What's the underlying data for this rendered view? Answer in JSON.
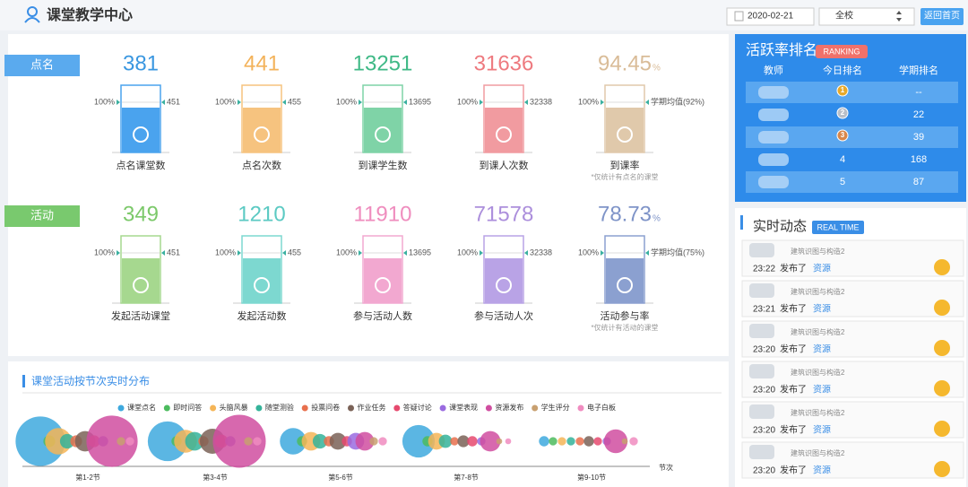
{
  "header": {
    "title": "课堂教学中心",
    "date": "2020-02-21",
    "scope": "全校",
    "home_button": "返回首页"
  },
  "rollcall": {
    "label": "点名",
    "cards": [
      {
        "value": 381,
        "top": "100%",
        "cap": 451,
        "label": "点名课堂数"
      },
      {
        "value": 441,
        "top": "100%",
        "cap": 455,
        "label": "点名次数"
      },
      {
        "value": 13251,
        "top": "100%",
        "cap": 13695,
        "label": "到课学生数"
      },
      {
        "value": 31636,
        "top": "100%",
        "cap": 32338,
        "label": "到课人次数"
      },
      {
        "value": 94.45,
        "unit": "%",
        "top": "100%",
        "cap": "学期均值(92%)",
        "label": "到课率",
        "note": "*仅统计有点名的课堂"
      }
    ]
  },
  "activity": {
    "label": "活动",
    "cards": [
      {
        "value": 349,
        "top": "100%",
        "cap": 451,
        "label": "发起活动课堂"
      },
      {
        "value": 1210,
        "top": "100%",
        "cap": 455,
        "label": "发起活动数"
      },
      {
        "value": 11910,
        "top": "100%",
        "cap": 13695,
        "label": "参与活动人数"
      },
      {
        "value": 71578,
        "top": "100%",
        "cap": 32338,
        "label": "参与活动人次"
      },
      {
        "value": 78.73,
        "unit": "%",
        "top": "100%",
        "cap": "学期均值(75%)",
        "label": "活动参与率",
        "note": "*仅统计有活动的课堂"
      }
    ]
  },
  "ranking": {
    "title": "活跃率排名",
    "badge": "RANKING",
    "columns": [
      "教师",
      "今日排名",
      "学期排名"
    ],
    "rows": [
      {
        "today": 1,
        "semester": "--"
      },
      {
        "today": 2,
        "semester": 22
      },
      {
        "today": 3,
        "semester": 39
      },
      {
        "today": 4,
        "semester": 168
      },
      {
        "today": 5,
        "semester": 87
      }
    ]
  },
  "realtime": {
    "title": "实时动态",
    "badge": "REAL TIME",
    "items": [
      {
        "course": "建筑识图与构造2",
        "time": "23:22",
        "action": "发布了",
        "link": "资源"
      },
      {
        "course": "建筑识图与构造2",
        "time": "23:21",
        "action": "发布了",
        "link": "资源"
      },
      {
        "course": "建筑识图与构造2",
        "time": "23:20",
        "action": "发布了",
        "link": "资源"
      },
      {
        "course": "建筑识图与构造2",
        "time": "23:20",
        "action": "发布了",
        "link": "资源"
      },
      {
        "course": "建筑识图与构造2",
        "time": "23:20",
        "action": "发布了",
        "link": "资源"
      },
      {
        "course": "建筑识图与构造2",
        "time": "23:20",
        "action": "发布了",
        "link": "资源"
      }
    ]
  },
  "chart_data": {
    "type": "bubble",
    "title": "课堂活动按节次实时分布",
    "categories": [
      "第1-2节",
      "第3-4节",
      "第5-6节",
      "第7-8节",
      "第9-10节"
    ],
    "x_label": "节次",
    "series": [
      {
        "name": "课堂点名",
        "color": "#3ea9de",
        "values": [
          70,
          45,
          20,
          30,
          3
        ]
      },
      {
        "name": "即时问答",
        "color": "#4cbb5e",
        "values": [
          4,
          3,
          3,
          3,
          2
        ]
      },
      {
        "name": "头脑风暴",
        "color": "#f5b557",
        "values": [
          20,
          15,
          10,
          8,
          2
        ]
      },
      {
        "name": "随堂测验",
        "color": "#34b39a",
        "values": [
          6,
          10,
          6,
          5,
          2
        ]
      },
      {
        "name": "投票问卷",
        "color": "#e8704d",
        "values": [
          4,
          3,
          3,
          2,
          2
        ]
      },
      {
        "name": "作业任务",
        "color": "#7a6257",
        "values": [
          12,
          18,
          8,
          4,
          3
        ]
      },
      {
        "name": "答疑讨论",
        "color": "#e6496e",
        "values": [
          4,
          5,
          3,
          3,
          2
        ]
      },
      {
        "name": "课堂表现",
        "color": "#9a6be0",
        "values": [
          3,
          3,
          8,
          2,
          2
        ]
      },
      {
        "name": "资源发布",
        "color": "#d04da0",
        "values": [
          75,
          80,
          10,
          12,
          16
        ]
      },
      {
        "name": "学生评分",
        "color": "#c8a070",
        "values": [
          2,
          2,
          2,
          1,
          1
        ]
      },
      {
        "name": "电子白板",
        "color": "#f08cc0",
        "values": [
          2,
          2,
          2,
          1,
          2
        ]
      }
    ]
  }
}
